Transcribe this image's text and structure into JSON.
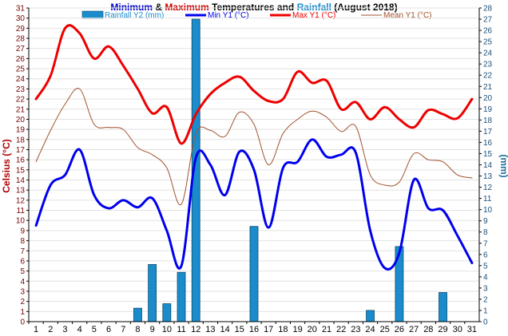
{
  "chart_data": {
    "type": "bar+line",
    "title_parts": [
      {
        "text": "Minimum",
        "color": "#0000cc"
      },
      {
        "text": " & ",
        "color": "#000000"
      },
      {
        "text": "Maximum",
        "color": "#cc0000"
      },
      {
        "text": " Temperatures and ",
        "color": "#000000"
      },
      {
        "text": "Rainfall",
        "color": "#1a8ccc"
      },
      {
        "text": " (August 2018)",
        "color": "#000000"
      }
    ],
    "ylabel_left": "Celsius (°C)",
    "ylabel_right": "(mm)",
    "ylim_left": [
      0,
      31
    ],
    "ylim_right": [
      0,
      28
    ],
    "x": [
      1,
      2,
      3,
      4,
      5,
      6,
      7,
      8,
      9,
      10,
      11,
      12,
      13,
      14,
      15,
      16,
      17,
      18,
      19,
      20,
      21,
      22,
      23,
      24,
      25,
      26,
      27,
      28,
      29,
      30,
      31
    ],
    "x_tick_labels": [
      "1",
      "2",
      "3",
      "4",
      "5",
      "6",
      "7",
      "8",
      "9",
      "10",
      "11",
      "12",
      "13",
      "14",
      "15",
      "16",
      "17",
      "18",
      "19",
      "20",
      "21",
      "22",
      "23",
      "24",
      "25",
      "26",
      "27",
      "28",
      "29",
      "30",
      "31"
    ],
    "y_left_ticks": [
      "0",
      "1",
      "2",
      "3",
      "4",
      "5",
      "6",
      "7",
      "8",
      "9",
      "10",
      "11",
      "12",
      "13",
      "14",
      "15",
      "16",
      "17",
      "18",
      "19",
      "20",
      "21",
      "22",
      "23",
      "24",
      "25",
      "26",
      "27",
      "28",
      "29",
      "30",
      "31"
    ],
    "y_right_ticks": [
      "0",
      "1",
      "2",
      "3",
      "4",
      "5",
      "6",
      "7",
      "8",
      "9",
      "10",
      "11",
      "12",
      "13",
      "14",
      "15",
      "16",
      "17",
      "18",
      "19",
      "20",
      "21",
      "22",
      "23",
      "24",
      "25",
      "26",
      "27",
      "28"
    ],
    "legend": [
      {
        "label": "Rainfall Y2 (mm)",
        "type": "bar",
        "color": "#1a8ccc"
      },
      {
        "label": "Min Y1 (°C)",
        "type": "line",
        "color": "#0000ee"
      },
      {
        "label": "Max Y1 (°C)",
        "type": "line",
        "color": "#ee0000"
      },
      {
        "label": "Mean Y1 (°C)",
        "type": "line",
        "color": "#a0522d"
      }
    ],
    "series": [
      {
        "name": "Rainfall Y2 (mm)",
        "axis": "right",
        "values": [
          0,
          0,
          0,
          0,
          0,
          0,
          0,
          1.2,
          5.1,
          1.6,
          4.4,
          27,
          0,
          0,
          0,
          8.5,
          0,
          0,
          0,
          0,
          0,
          0,
          0,
          1,
          0,
          6.7,
          0,
          0,
          2.6,
          0,
          0
        ]
      },
      {
        "name": "Min Y1 (°C)",
        "axis": "left",
        "values": [
          9.5,
          13.5,
          14.5,
          17,
          12.5,
          11.2,
          12,
          11.3,
          12.2,
          9,
          5.5,
          16.2,
          15.5,
          12.5,
          16.8,
          15,
          9.3,
          15.2,
          15.8,
          18,
          16.3,
          16.5,
          16.7,
          9,
          5.3,
          6.8,
          14,
          11.2,
          11,
          8.5,
          5.8
        ]
      },
      {
        "name": "Max Y1 (°C)",
        "axis": "left",
        "values": [
          22,
          24.3,
          29,
          28.5,
          26,
          27.2,
          25.3,
          23,
          20.6,
          21.2,
          17.6,
          20.5,
          22.5,
          23.6,
          24.2,
          22.8,
          21.8,
          22,
          24.7,
          23.6,
          23.8,
          21,
          21.7,
          20,
          21.2,
          20,
          19.2,
          20.9,
          20.5,
          20.1,
          22
        ]
      },
      {
        "name": "Mean Y1 (°C)",
        "axis": "left",
        "values": [
          15.8,
          18.9,
          21.5,
          23,
          19.5,
          19.2,
          19,
          17.2,
          16.5,
          15.2,
          11.6,
          18.6,
          18.9,
          18.3,
          20.7,
          19.5,
          15.5,
          18.6,
          20,
          20.8,
          20.2,
          18.8,
          19.3,
          14.5,
          13.5,
          13.8,
          16.6,
          16,
          15.8,
          14.5,
          14.2
        ]
      }
    ]
  }
}
